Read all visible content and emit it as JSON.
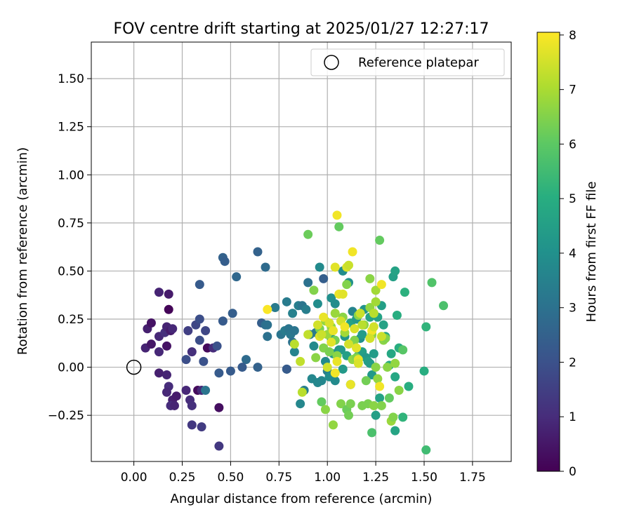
{
  "chart_data": {
    "type": "scatter",
    "title": "FOV centre drift starting at 2025/01/27 12:27:17",
    "xlabel": "Angular distance from reference (arcmin)",
    "ylabel": "Rotation from reference (arcmin)",
    "xlim": [
      -0.22,
      1.95
    ],
    "ylim": [
      -0.49,
      1.69
    ],
    "xticks": [
      "0.00",
      "0.25",
      "0.50",
      "0.75",
      "1.00",
      "1.25",
      "1.50",
      "1.75"
    ],
    "yticks": [
      "−0.25",
      "0.00",
      "0.25",
      "0.50",
      "0.75",
      "1.00",
      "1.25",
      "1.50"
    ],
    "xtick_values": [
      0,
      0.25,
      0.5,
      0.75,
      1.0,
      1.25,
      1.5,
      1.75
    ],
    "ytick_values": [
      -0.25,
      0,
      0.25,
      0.5,
      0.75,
      1.0,
      1.25,
      1.5
    ],
    "grid": true,
    "legend": {
      "position": "top-right",
      "entries": [
        "Reference platepar"
      ]
    },
    "reference_point": {
      "x": 0.0,
      "y": 0.0
    },
    "colorbar": {
      "label": "Hours from first FF file",
      "colormap": "viridis",
      "range": [
        0,
        8.05
      ],
      "ticks": [
        "0",
        "1",
        "2",
        "3",
        "4",
        "5",
        "6",
        "7",
        "8"
      ],
      "tick_values": [
        0,
        1,
        2,
        3,
        4,
        5,
        6,
        7,
        8
      ]
    },
    "series": [
      {
        "points": [
          [
            0.13,
            0.39,
            0.8
          ],
          [
            0.18,
            0.38,
            0.6
          ],
          [
            0.18,
            0.3,
            0.1
          ],
          [
            0.07,
            0.2,
            0.7
          ],
          [
            0.09,
            0.23,
            0.4
          ],
          [
            0.13,
            0.16,
            0.9
          ],
          [
            0.16,
            0.18,
            1.1
          ],
          [
            0.17,
            0.21,
            0.8
          ],
          [
            0.19,
            0.19,
            0.6
          ],
          [
            0.2,
            0.2,
            0.9
          ],
          [
            0.06,
            0.1,
            0.8
          ],
          [
            0.09,
            0.12,
            0.5
          ],
          [
            0.13,
            0.08,
            0.9
          ],
          [
            0.17,
            0.11,
            0.4
          ],
          [
            0.13,
            -0.03,
            0.7
          ],
          [
            0.17,
            -0.04,
            0.8
          ],
          [
            0.18,
            -0.1,
            1.0
          ],
          [
            0.17,
            -0.13,
            0.9
          ],
          [
            0.2,
            -0.17,
            0.7
          ],
          [
            0.22,
            -0.15,
            0.6
          ],
          [
            0.19,
            -0.2,
            1.0
          ],
          [
            0.21,
            -0.2,
            0.8
          ],
          [
            0.27,
            -0.12,
            0.9
          ],
          [
            0.29,
            -0.17,
            1.0
          ],
          [
            0.3,
            -0.2,
            1.1
          ],
          [
            0.33,
            -0.12,
            0.2
          ],
          [
            0.35,
            -0.12,
            0.9
          ],
          [
            0.3,
            -0.3,
            1.3
          ],
          [
            0.35,
            -0.31,
            1.4
          ],
          [
            0.44,
            -0.21,
            0.3
          ],
          [
            0.44,
            -0.41,
            1.3
          ],
          [
            0.28,
            0.19,
            1.5
          ],
          [
            0.32,
            0.22,
            1.7
          ],
          [
            0.34,
            0.25,
            1.9
          ],
          [
            0.37,
            0.19,
            1.7
          ],
          [
            0.38,
            0.1,
            0.2
          ],
          [
            0.34,
            0.14,
            1.9
          ],
          [
            0.3,
            0.08,
            1.1
          ],
          [
            0.27,
            0.04,
            1.9
          ],
          [
            0.36,
            0.03,
            2.0
          ],
          [
            0.34,
            0.43,
            2.3
          ],
          [
            0.41,
            0.1,
            1.0
          ],
          [
            0.43,
            0.11,
            2.0
          ],
          [
            0.44,
            -0.03,
            2.3
          ],
          [
            0.37,
            -0.12,
            3.1
          ],
          [
            0.46,
            0.57,
            2.5
          ],
          [
            0.47,
            0.55,
            2.4
          ],
          [
            0.46,
            0.24,
            2.3
          ],
          [
            0.5,
            -0.02,
            2.3
          ],
          [
            0.51,
            0.28,
            2.4
          ],
          [
            0.53,
            0.47,
            2.7
          ],
          [
            0.58,
            0.04,
            2.8
          ],
          [
            0.56,
            0.0,
            2.3
          ],
          [
            0.64,
            0.6,
            2.5
          ],
          [
            0.64,
            0.0,
            2.5
          ],
          [
            0.66,
            0.23,
            2.4
          ],
          [
            0.68,
            0.22,
            2.9
          ],
          [
            0.68,
            0.52,
            2.8
          ],
          [
            0.69,
            0.16,
            3.0
          ],
          [
            0.69,
            0.22,
            3.0
          ],
          [
            0.73,
            0.31,
            3.3
          ],
          [
            0.76,
            0.17,
            3.1
          ],
          [
            0.78,
            0.19,
            3.3
          ],
          [
            0.79,
            0.34,
            3.3
          ],
          [
            0.79,
            -0.01,
            3.0
          ],
          [
            0.79,
            -0.01,
            2.3
          ],
          [
            0.8,
            0.2,
            3.1
          ],
          [
            0.81,
            0.17,
            3.2
          ],
          [
            0.82,
            0.28,
            3.5
          ],
          [
            0.82,
            0.13,
            3.0
          ],
          [
            0.83,
            0.19,
            3.1
          ],
          [
            0.83,
            0.08,
            3.6
          ],
          [
            0.85,
            0.32,
            3.4
          ],
          [
            0.87,
            0.32,
            3.1
          ],
          [
            0.86,
            -0.19,
            3.7
          ],
          [
            0.88,
            -0.12,
            3.4
          ],
          [
            0.89,
            0.3,
            3.4
          ],
          [
            0.9,
            0.44,
            3.0
          ],
          [
            0.91,
            0.17,
            3.5
          ],
          [
            0.92,
            -0.06,
            3.7
          ],
          [
            0.93,
            0.11,
            3.8
          ],
          [
            0.94,
            0.18,
            3.3
          ],
          [
            0.95,
            -0.08,
            3.7
          ],
          [
            0.95,
            0.33,
            3.9
          ],
          [
            0.96,
            0.52,
            3.8
          ],
          [
            0.97,
            -0.07,
            3.7
          ],
          [
            0.98,
            0.46,
            2.4
          ],
          [
            0.99,
            0.03,
            3.8
          ],
          [
            1.0,
            -0.02,
            3.4
          ],
          [
            1.01,
            -0.05,
            3.9
          ],
          [
            1.02,
            0.15,
            4.3
          ],
          [
            1.02,
            0.36,
            4.0
          ],
          [
            1.03,
            0.07,
            4.2
          ],
          [
            1.04,
            0.33,
            3.9
          ],
          [
            1.04,
            -0.07,
            3.8
          ],
          [
            1.06,
            0.09,
            4.1
          ],
          [
            1.07,
            0.09,
            4.3
          ],
          [
            1.08,
            -0.01,
            4.3
          ],
          [
            1.08,
            0.5,
            3.9
          ],
          [
            1.09,
            0.16,
            4.2
          ],
          [
            1.1,
            0.06,
            4.5
          ],
          [
            1.11,
            0.44,
            4.0
          ],
          [
            1.12,
            -0.09,
            4.3
          ],
          [
            1.12,
            0.23,
            4.6
          ],
          [
            1.13,
            0.29,
            3.6
          ],
          [
            1.15,
            0.25,
            4.3
          ],
          [
            1.16,
            0.06,
            4.5
          ],
          [
            1.17,
            0.15,
            4.0
          ],
          [
            1.18,
            0.17,
            4.4
          ],
          [
            1.18,
            0.08,
            4.5
          ],
          [
            1.19,
            0.3,
            4.1
          ],
          [
            1.2,
            0.05,
            4.3
          ],
          [
            1.21,
            0.03,
            4.5
          ],
          [
            1.22,
            0.02,
            4.4
          ],
          [
            1.22,
            0.26,
            4.6
          ],
          [
            1.23,
            -0.04,
            4.3
          ],
          [
            1.24,
            0.07,
            4.4
          ],
          [
            1.24,
            0.28,
            4.2
          ],
          [
            1.25,
            -0.25,
            4.5
          ],
          [
            1.26,
            0.26,
            4.6
          ],
          [
            1.27,
            -0.16,
            4.6
          ],
          [
            1.28,
            0.32,
            4.5
          ],
          [
            1.29,
            0.22,
            4.6
          ],
          [
            1.3,
            0.16,
            4.7
          ],
          [
            1.32,
            0.01,
            4.8
          ],
          [
            1.33,
            0.07,
            4.8
          ],
          [
            1.34,
            0.47,
            4.5
          ],
          [
            1.35,
            0.5,
            4.6
          ],
          [
            1.35,
            -0.05,
            4.8
          ],
          [
            1.35,
            -0.33,
            4.7
          ],
          [
            1.36,
            0.27,
            5.0
          ],
          [
            1.37,
            0.1,
            5.0
          ],
          [
            1.39,
            -0.26,
            5.2
          ],
          [
            1.4,
            0.39,
            5.1
          ],
          [
            1.42,
            -0.1,
            5.0
          ],
          [
            1.5,
            -0.02,
            5.0
          ],
          [
            1.51,
            0.21,
            5.2
          ],
          [
            1.51,
            -0.43,
            5.5
          ],
          [
            1.54,
            0.44,
            5.8
          ],
          [
            1.6,
            0.32,
            5.7
          ],
          [
            0.9,
            0.69,
            6.2
          ],
          [
            0.93,
            0.4,
            6.5
          ],
          [
            0.94,
            0.05,
            6.6
          ],
          [
            0.96,
            0.2,
            6.4
          ],
          [
            0.97,
            -0.18,
            6.1
          ],
          [
            0.98,
            0.1,
            6.5
          ],
          [
            0.99,
            -0.22,
            6.6
          ],
          [
            0.99,
            0.24,
            6.7
          ],
          [
            1.0,
            0.17,
            6.8
          ],
          [
            1.01,
            0.08,
            6.4
          ],
          [
            1.02,
            0.21,
            6.7
          ],
          [
            1.03,
            -0.3,
            6.7
          ],
          [
            1.04,
            0.28,
            6.8
          ],
          [
            1.04,
            0.14,
            6.3
          ],
          [
            1.05,
            0.06,
            6.6
          ],
          [
            1.06,
            0.73,
            6.1
          ],
          [
            1.07,
            -0.19,
            6.5
          ],
          [
            1.08,
            0.26,
            6.6
          ],
          [
            1.09,
            0.18,
            6.9
          ],
          [
            1.1,
            0.43,
            6.5
          ],
          [
            1.1,
            -0.22,
            6.2
          ],
          [
            1.11,
            -0.25,
            6.3
          ],
          [
            1.12,
            -0.19,
            6.4
          ],
          [
            1.13,
            0.04,
            6.7
          ],
          [
            1.14,
            0.14,
            6.5
          ],
          [
            1.15,
            0.05,
            6.5
          ],
          [
            1.16,
            0.27,
            6.6
          ],
          [
            1.18,
            -0.2,
            6.4
          ],
          [
            1.19,
            0.22,
            6.6
          ],
          [
            1.2,
            -0.07,
            6.3
          ],
          [
            1.21,
            -0.19,
            6.4
          ],
          [
            1.22,
            0.46,
            6.6
          ],
          [
            1.22,
            0.31,
            6.7
          ],
          [
            1.23,
            0.17,
            6.6
          ],
          [
            1.23,
            -0.34,
            5.7
          ],
          [
            1.24,
            -0.2,
            6.6
          ],
          [
            1.25,
            0.0,
            6.6
          ],
          [
            1.26,
            -0.06,
            6.7
          ],
          [
            1.27,
            0.66,
            6.1
          ],
          [
            1.28,
            -0.2,
            6.5
          ],
          [
            1.29,
            0.14,
            6.6
          ],
          [
            1.3,
            0.15,
            6.5
          ],
          [
            1.31,
            0.0,
            6.6
          ],
          [
            1.32,
            -0.16,
            6.1
          ],
          [
            1.33,
            -0.28,
            6.8
          ],
          [
            1.34,
            -0.26,
            6.5
          ],
          [
            1.35,
            0.02,
            6.7
          ],
          [
            1.37,
            -0.12,
            6.6
          ],
          [
            1.39,
            0.09,
            5.9
          ],
          [
            1.25,
            0.4,
            6.9
          ],
          [
            1.25,
            0.34,
            6.9
          ],
          [
            0.83,
            0.12,
            7.2
          ],
          [
            0.86,
            0.03,
            7.3
          ],
          [
            0.87,
            -0.13,
            7.2
          ],
          [
            0.9,
            0.17,
            7.3
          ],
          [
            0.95,
            0.22,
            7.5
          ],
          [
            0.96,
            0.16,
            7.7
          ],
          [
            0.98,
            0.26,
            7.8
          ],
          [
            1.0,
            0.0,
            7.5
          ],
          [
            1.01,
            0.23,
            7.6
          ],
          [
            1.02,
            0.13,
            7.7
          ],
          [
            1.03,
            0.19,
            7.8
          ],
          [
            1.04,
            -0.03,
            7.9
          ],
          [
            1.04,
            0.52,
            7.7
          ],
          [
            1.05,
            0.79,
            7.9
          ],
          [
            1.06,
            0.38,
            7.8
          ],
          [
            1.07,
            0.24,
            7.5
          ],
          [
            1.08,
            0.38,
            7.7
          ],
          [
            1.09,
            0.21,
            7.9
          ],
          [
            1.1,
            0.52,
            7.6
          ],
          [
            1.11,
            0.53,
            7.4
          ],
          [
            1.11,
            0.12,
            7.5
          ],
          [
            1.12,
            -0.09,
            7.8
          ],
          [
            1.13,
            0.6,
            7.9
          ],
          [
            1.14,
            0.2,
            7.6
          ],
          [
            1.15,
            0.1,
            7.7
          ],
          [
            1.16,
            0.04,
            7.8
          ],
          [
            1.17,
            0.28,
            7.4
          ],
          [
            1.18,
            0.22,
            7.2
          ],
          [
            1.23,
            0.19,
            7.9
          ],
          [
            1.24,
            0.21,
            7.5
          ],
          [
            1.27,
            -0.1,
            7.9
          ],
          [
            1.28,
            0.16,
            7.4
          ],
          [
            1.28,
            0.43,
            7.9
          ],
          [
            0.69,
            0.3,
            8.0
          ],
          [
            1.05,
            0.03,
            7.8
          ],
          [
            1.16,
            0.02,
            7.6
          ],
          [
            1.24,
            0.28,
            7.2
          ],
          [
            0.97,
            0.17,
            7.4
          ],
          [
            1.22,
            0.15,
            7.5
          ]
        ]
      }
    ]
  }
}
